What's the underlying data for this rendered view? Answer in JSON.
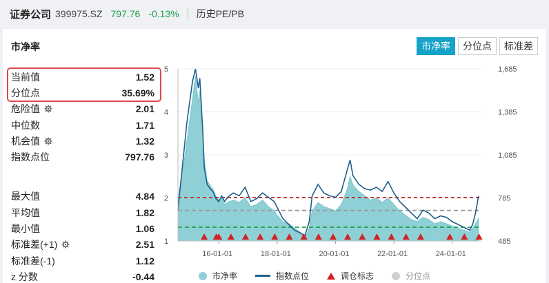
{
  "header": {
    "name": "证券公司",
    "code": "399975.SZ",
    "price": "797.76",
    "change": "-0.13%",
    "history_link": "历史PE/PB"
  },
  "panel": {
    "title": "市净率",
    "tabs": [
      {
        "label": "市净率",
        "active": true
      },
      {
        "label": "分位点",
        "active": false
      },
      {
        "label": "标准差",
        "active": false
      }
    ]
  },
  "stats_top": [
    {
      "label": "当前值",
      "value": "1.52",
      "gear": false
    },
    {
      "label": "分位点",
      "value": "35.69%",
      "gear": false
    },
    {
      "label": "危险值",
      "value": "2.01",
      "gear": true
    },
    {
      "label": "中位数",
      "value": "1.71",
      "gear": false
    },
    {
      "label": "机会值",
      "value": "1.32",
      "gear": true
    },
    {
      "label": "指数点位",
      "value": "797.76",
      "gear": false
    }
  ],
  "stats_bottom": [
    {
      "label": "最大值",
      "value": "4.84",
      "gear": false
    },
    {
      "label": "平均值",
      "value": "1.82",
      "gear": false
    },
    {
      "label": "最小值",
      "value": "1.06",
      "gear": false
    },
    {
      "label": "标准差(+1)",
      "value": "2.51",
      "gear": true
    },
    {
      "label": "标准差(-1)",
      "value": "1.12",
      "gear": false
    },
    {
      "label": "z 分数",
      "value": "-0.44",
      "gear": false
    }
  ],
  "colors": {
    "pb_fill": "#8fd0d6",
    "index_line": "#1f5f8b",
    "danger": "#c0302a",
    "median": "#999999",
    "opportunity": "#1a9e4b",
    "marker": "#d32020",
    "accent": "#17a2c8"
  },
  "chart_data": {
    "type": "area",
    "title": "",
    "x_ticks": [
      "16-01-01",
      "18-01-01",
      "20-01-01",
      "22-01-01",
      "24-01-01"
    ],
    "y_left_ticks": [
      "1",
      "2",
      "3",
      "4",
      "5"
    ],
    "y_right_ticks": [
      "485",
      "785",
      "1,085",
      "1,385",
      "1,685"
    ],
    "ylim_left": [
      1,
      5
    ],
    "ylim_right": [
      485,
      1685
    ],
    "xlim": [
      2014.6,
      2025.0
    ],
    "reference_lines": {
      "danger": 2.01,
      "median": 1.71,
      "opportunity": 1.32
    },
    "series": [
      {
        "name": "市净率",
        "axis": "left",
        "x": [
          2014.6,
          2014.7,
          2014.8,
          2014.9,
          2015.0,
          2015.1,
          2015.2,
          2015.3,
          2015.35,
          2015.45,
          2015.5,
          2015.6,
          2015.7,
          2015.8,
          2015.9,
          2016.0,
          2016.1,
          2016.2,
          2016.3,
          2016.5,
          2016.7,
          2016.9,
          2017.1,
          2017.3,
          2017.5,
          2017.7,
          2017.9,
          2018.0,
          2018.2,
          2018.4,
          2018.6,
          2018.8,
          2018.95,
          2019.1,
          2019.2,
          2019.4,
          2019.6,
          2019.8,
          2020.0,
          2020.2,
          2020.4,
          2020.5,
          2020.6,
          2020.8,
          2021.0,
          2021.2,
          2021.4,
          2021.6,
          2021.8,
          2022.0,
          2022.2,
          2022.4,
          2022.6,
          2022.8,
          2023.0,
          2023.2,
          2023.4,
          2023.6,
          2023.8,
          2024.0,
          2024.2,
          2024.4,
          2024.6,
          2024.7,
          2024.8,
          2024.9
        ],
        "values": [
          1.9,
          2.4,
          2.8,
          3.3,
          3.8,
          4.3,
          4.84,
          4.2,
          4.5,
          3.6,
          2.9,
          2.4,
          2.3,
          2.2,
          2.05,
          1.95,
          2.0,
          1.85,
          1.9,
          1.95,
          1.9,
          2.0,
          1.8,
          1.85,
          1.95,
          1.8,
          1.7,
          1.6,
          1.45,
          1.4,
          1.3,
          1.2,
          1.06,
          1.3,
          1.7,
          1.9,
          1.8,
          1.75,
          1.7,
          1.85,
          2.2,
          2.5,
          2.3,
          2.15,
          2.05,
          1.95,
          2.0,
          1.9,
          2.0,
          1.85,
          1.7,
          1.6,
          1.5,
          1.45,
          1.55,
          1.5,
          1.4,
          1.45,
          1.4,
          1.35,
          1.3,
          1.25,
          1.2,
          1.3,
          1.4,
          1.52
        ]
      },
      {
        "name": "指数点位",
        "axis": "right",
        "x": [
          2014.6,
          2014.7,
          2014.8,
          2014.9,
          2015.0,
          2015.1,
          2015.2,
          2015.3,
          2015.35,
          2015.45,
          2015.5,
          2015.6,
          2015.7,
          2015.8,
          2015.9,
          2016.0,
          2016.1,
          2016.2,
          2016.3,
          2016.5,
          2016.7,
          2016.9,
          2017.1,
          2017.3,
          2017.5,
          2017.7,
          2017.9,
          2018.0,
          2018.2,
          2018.4,
          2018.6,
          2018.8,
          2018.95,
          2019.1,
          2019.2,
          2019.4,
          2019.6,
          2019.8,
          2020.0,
          2020.2,
          2020.4,
          2020.5,
          2020.6,
          2020.8,
          2021.0,
          2021.2,
          2021.4,
          2021.6,
          2021.8,
          2022.0,
          2022.2,
          2022.4,
          2022.6,
          2022.8,
          2023.0,
          2023.2,
          2023.4,
          2023.6,
          2023.8,
          2024.0,
          2024.2,
          2024.4,
          2024.6,
          2024.7,
          2024.8,
          2024.9
        ],
        "values": [
          700,
          900,
          1100,
          1300,
          1450,
          1600,
          1685,
          1550,
          1620,
          1250,
          1000,
          880,
          850,
          830,
          780,
          760,
          800,
          760,
          790,
          820,
          800,
          860,
          760,
          780,
          820,
          790,
          760,
          720,
          640,
          600,
          560,
          540,
          520,
          620,
          800,
          880,
          820,
          800,
          790,
          830,
          980,
          1050,
          940,
          880,
          850,
          840,
          860,
          830,
          900,
          820,
          760,
          720,
          680,
          640,
          700,
          680,
          640,
          660,
          650,
          620,
          600,
          580,
          560,
          600,
          680,
          798
        ]
      }
    ],
    "rebalance_markers": [
      "15-07",
      "15-12",
      "16-01",
      "16-06",
      "16-12",
      "17-06",
      "17-12",
      "18-06",
      "18-12",
      "19-06",
      "19-12",
      "20-06",
      "20-12",
      "21-06",
      "21-12",
      "22-06",
      "22-12",
      "23-12",
      "24-06",
      "24-12"
    ]
  },
  "legend": [
    {
      "label": "市净率",
      "kind": "dot"
    },
    {
      "label": "指数点位",
      "kind": "line"
    },
    {
      "label": "调仓标志",
      "kind": "triangle"
    },
    {
      "label": "分位点",
      "kind": "dot-grey"
    }
  ]
}
